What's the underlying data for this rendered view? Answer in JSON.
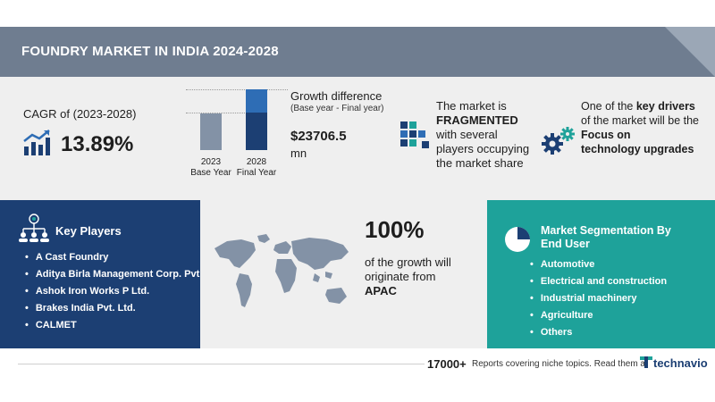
{
  "header": {
    "title": "FOUNDRY MARKET IN INDIA 2024-2028"
  },
  "cagr": {
    "label": "CAGR of (2023-2028)",
    "value": "13.89%",
    "icon": "rising-chart-icon"
  },
  "growth": {
    "label": "Growth difference",
    "sublabel": "(Base year - Final year)",
    "value": "$23706.5",
    "unit": "mn",
    "base": {
      "year": "2023",
      "label": "Base Year"
    },
    "final": {
      "year": "2028",
      "label": "Final Year"
    }
  },
  "market": {
    "line1": "The market is",
    "line2": "FRAGMENTED",
    "line3": "with several",
    "line4": "players occupying",
    "line5": "the market share",
    "icon": "fragmented-blocks-icon"
  },
  "driver": {
    "line1": "One of the",
    "emphasis": "key drivers",
    "line2": "of the market will be the",
    "line3": "Focus on",
    "line4": "technology upgrades",
    "icon": "gears-icon"
  },
  "key_players": {
    "title": "Key Players",
    "items": [
      "A Cast Foundry",
      "Aditya Birla Management Corp. Pvt",
      "Ashok Iron Works P Ltd.",
      "Brakes India Pvt. Ltd.",
      "CALMET"
    ],
    "icon": "network-people-icon"
  },
  "region": {
    "pct": "100%",
    "line1": "of the growth will",
    "line2": "originate from",
    "name": "APAC",
    "icon": "world-map-icon"
  },
  "segmentation": {
    "title_line1": "Market Segmentation By",
    "title_line2": "End User",
    "items": [
      "Automotive",
      "Electrical and construction",
      "Industrial machinery",
      "Agriculture",
      "Others"
    ],
    "icon": "pie-chart-icon"
  },
  "footer": {
    "count": "17000+",
    "text": "Reports covering niche topics. Read them at",
    "brand": "technavio"
  },
  "colors": {
    "title_band": "#6f7d90",
    "navy": "#1c3f73",
    "blue": "#2e6db5",
    "teal": "#1ea29a",
    "grey_bar": "#8392a6",
    "light_bg": "#efefef"
  }
}
